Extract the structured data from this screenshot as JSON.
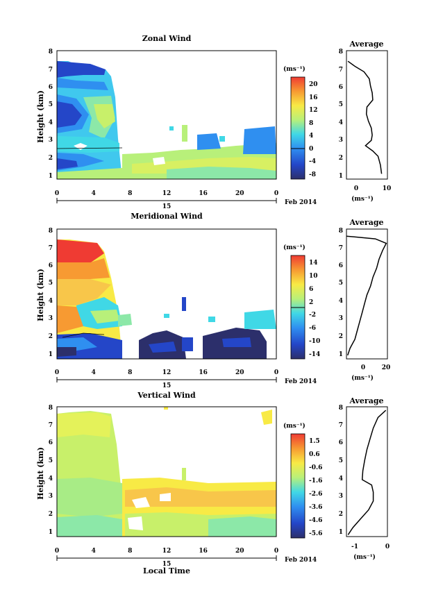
{
  "xlabel": "Local Time",
  "date_label": "Feb 2014",
  "date_tick": "15",
  "chart_data": [
    {
      "type": "heatmap",
      "title": "Zonal Wind",
      "ylabel": "Height (km)",
      "xlim": [
        0,
        24
      ],
      "ylim": [
        0.7,
        8
      ],
      "xticks": [
        "0",
        "4",
        "8",
        "12",
        "16",
        "20",
        "0"
      ],
      "yticks": [
        "1",
        "2",
        "3",
        "4",
        "5",
        "6",
        "7",
        "8"
      ],
      "colorbar": {
        "unit": "(ms⁻¹)",
        "ticks": [
          "20",
          "16",
          "12",
          "8",
          "4",
          "0",
          "-4",
          "-8"
        ],
        "range": [
          -10,
          22
        ]
      },
      "profile": {
        "title": "Average",
        "xlabel": "(ms⁻¹)",
        "xticks": [
          "0",
          "10"
        ],
        "xlim": [
          -4,
          10
        ],
        "height": [
          1.0,
          1.5,
          2.0,
          2.3,
          2.6,
          2.9,
          3.2,
          3.6,
          4.0,
          4.4,
          4.8,
          5.2,
          5.6,
          6.0,
          6.4,
          6.8,
          7.1,
          7.4
        ],
        "value": [
          8.0,
          7.6,
          6.8,
          5.0,
          2.5,
          4.5,
          4.8,
          4.5,
          3.5,
          2.8,
          3.0,
          5.0,
          4.8,
          4.2,
          3.8,
          2.0,
          -1.0,
          -3.5
        ]
      }
    },
    {
      "type": "heatmap",
      "title": "Meridional Wind",
      "ylabel": "Height (km)",
      "xlim": [
        0,
        24
      ],
      "ylim": [
        0.7,
        8
      ],
      "xticks": [
        "0",
        "4",
        "8",
        "12",
        "16",
        "20",
        "0"
      ],
      "yticks": [
        "1",
        "2",
        "3",
        "4",
        "5",
        "6",
        "7",
        "8"
      ],
      "colorbar": {
        "unit": "(ms⁻¹)",
        "ticks": [
          "14",
          "10",
          "6",
          "2",
          "-2",
          "-6",
          "-10",
          "-14"
        ],
        "range": [
          -16,
          16
        ]
      },
      "profile": {
        "title": "Average",
        "xlabel": "(ms⁻¹)",
        "xticks": [
          "0",
          "20"
        ],
        "xlim": [
          -14,
          20
        ],
        "height": [
          0.9,
          1.3,
          1.8,
          2.3,
          2.8,
          3.3,
          3.8,
          4.3,
          4.8,
          5.3,
          5.8,
          6.3,
          6.8,
          7.2,
          7.45,
          7.6
        ],
        "value": [
          -13,
          -11,
          -7,
          -5,
          -3,
          -1,
          1,
          3,
          6,
          8,
          11,
          13,
          16,
          19,
          10,
          -14
        ]
      }
    },
    {
      "type": "heatmap",
      "title": "Vertical Wind",
      "ylabel": "Height (km)",
      "xlim": [
        0,
        24
      ],
      "ylim": [
        0.7,
        8
      ],
      "xticks": [
        "0",
        "4",
        "8",
        "12",
        "16",
        "20",
        "0"
      ],
      "yticks": [
        "1",
        "2",
        "3",
        "4",
        "5",
        "6",
        "7",
        "8"
      ],
      "colorbar": {
        "unit": "(ms⁻¹)",
        "ticks": [
          "1.5",
          "0.6",
          "-0.6",
          "-1.6",
          "-2.6",
          "-3.6",
          "-4.6",
          "-5.6"
        ],
        "range": [
          -6,
          2
        ]
      },
      "profile": {
        "title": "Average",
        "xlabel": "(ms⁻¹)",
        "xticks": [
          "-1",
          "0"
        ],
        "xlim": [
          -1.3,
          0
        ],
        "height": [
          0.8,
          1.2,
          1.7,
          2.2,
          2.7,
          3.2,
          3.6,
          3.9,
          4.4,
          5.0,
          5.6,
          6.2,
          6.8,
          7.4,
          7.8
        ],
        "value": [
          -1.25,
          -1.1,
          -0.85,
          -0.6,
          -0.45,
          -0.45,
          -0.5,
          -0.8,
          -0.78,
          -0.72,
          -0.65,
          -0.55,
          -0.45,
          -0.3,
          -0.05
        ]
      }
    }
  ]
}
